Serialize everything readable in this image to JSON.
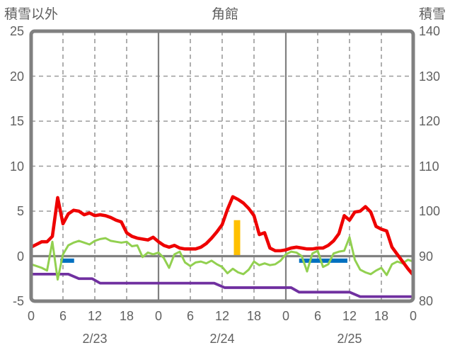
{
  "header": {
    "left_axis_label": "積雪以外",
    "title": "角館",
    "right_axis_label": "積雪"
  },
  "colors": {
    "red": "#EE0000",
    "green": "#92D050",
    "purple": "#7030A0",
    "blue": "#0070C0",
    "yellow": "#FFC000",
    "frame_gray": "#808080",
    "grid_gray": "#9B9B9B",
    "text_gray": "#5E5E5E"
  },
  "chart_data": {
    "type": "line",
    "title": "角館",
    "left_axis": {
      "label": "積雪以外",
      "ticks": [
        25,
        20,
        15,
        10,
        5,
        0,
        -5
      ],
      "range": [
        -5,
        25
      ]
    },
    "right_axis": {
      "label": "積雪",
      "ticks": [
        140,
        130,
        120,
        110,
        100,
        90,
        80
      ],
      "range": [
        80,
        140
      ]
    },
    "x_axis": {
      "range_hours": [
        0,
        72
      ],
      "tick_step_hours": 6,
      "tick_labels": [
        "0",
        "6",
        "12",
        "18",
        "0",
        "6",
        "12",
        "18",
        "0",
        "6",
        "12",
        "18",
        "0"
      ],
      "date_labels": [
        {
          "label": "2/23",
          "hour": 12
        },
        {
          "label": "2/24",
          "hour": 36
        },
        {
          "label": "2/25",
          "hour": 60
        }
      ]
    },
    "grid": {
      "dashed_h_ticks": [
        20,
        15,
        10,
        5
      ],
      "solid_zero_line": 0,
      "solid_v_hours": [
        24,
        48
      ],
      "dashed_v_hours": [
        6,
        12,
        18,
        30,
        36,
        42,
        54,
        60,
        66
      ]
    },
    "series": [
      {
        "name": "red-line",
        "axis": "left",
        "color": "#EE0000",
        "values": [
          1.0,
          1.3,
          1.6,
          1.6,
          2.2,
          6.5,
          3.6,
          4.7,
          5.1,
          5.0,
          4.6,
          4.8,
          4.5,
          4.6,
          4.5,
          4.3,
          4.0,
          3.8,
          2.6,
          2.2,
          2.0,
          1.9,
          1.8,
          2.1,
          1.6,
          1.2,
          1.0,
          1.2,
          0.9,
          0.8,
          0.8,
          0.8,
          1.0,
          1.4,
          2.0,
          2.7,
          3.5,
          5.2,
          6.6,
          6.3,
          5.9,
          5.3,
          4.5,
          2.4,
          2.6,
          0.9,
          0.6,
          0.6,
          0.7,
          0.9,
          1.0,
          0.9,
          0.8,
          0.8,
          0.9,
          0.9,
          1.2,
          1.7,
          2.5,
          4.5,
          4.0,
          4.9,
          5.0,
          5.5,
          4.9,
          3.3,
          3.0,
          2.8,
          1.0,
          0.2,
          -0.6,
          -1.4,
          -2.1
        ]
      },
      {
        "name": "green-line",
        "axis": "left",
        "color": "#92D050",
        "values": [
          -0.9,
          -1.1,
          -1.3,
          -1.6,
          1.6,
          -2.6,
          0.2,
          1.2,
          1.5,
          1.7,
          1.5,
          1.3,
          1.7,
          1.9,
          2.0,
          1.7,
          1.6,
          1.5,
          1.6,
          1.1,
          1.2,
          -0.1,
          0.4,
          0.2,
          0.4,
          -0.2,
          -1.3,
          0.2,
          0.5,
          -0.7,
          -1.1,
          -0.7,
          -0.6,
          -0.8,
          -0.5,
          -0.9,
          -1.2,
          -1.9,
          -1.4,
          -1.8,
          -2.0,
          -1.5,
          -0.6,
          -1.0,
          -0.8,
          -1.0,
          -0.9,
          -0.5,
          0.2,
          0.5,
          0.4,
          0.0,
          -1.7,
          0.3,
          0.6,
          -1.2,
          -0.9,
          0.3,
          0.5,
          0.6,
          2.1,
          -0.4,
          -1.5,
          -1.8,
          -2.0,
          -1.6,
          -1.3,
          -2.1,
          -0.9,
          -0.6,
          -0.8,
          -0.4,
          -0.6
        ]
      }
    ],
    "snow_depth_line": {
      "name": "snow-depth-line",
      "axis": "right",
      "color": "#7030A0",
      "points": [
        {
          "hour": 0,
          "cm": 86
        },
        {
          "hour": 7,
          "cm": 86
        },
        {
          "hour": 9,
          "cm": 85
        },
        {
          "hour": 11.5,
          "cm": 85
        },
        {
          "hour": 13,
          "cm": 84
        },
        {
          "hour": 34.5,
          "cm": 84
        },
        {
          "hour": 36.5,
          "cm": 83
        },
        {
          "hour": 49,
          "cm": 83
        },
        {
          "hour": 50.5,
          "cm": 82
        },
        {
          "hour": 60,
          "cm": 82
        },
        {
          "hour": 62,
          "cm": 81
        },
        {
          "hour": 72,
          "cm": 81
        }
      ]
    },
    "bars": [
      {
        "name": "yellow-bar",
        "color": "#FFC000",
        "hour_start": 38.2,
        "hour_end": 39.4,
        "value_from": 0,
        "value_to": 4
      }
    ],
    "segments": [
      {
        "name": "blue-segment",
        "color": "#0070C0",
        "hour_start": 5.5,
        "hour_end": 8.1,
        "value": -0.5
      },
      {
        "name": "blue-segment",
        "color": "#0070C0",
        "hour_start": 50.5,
        "hour_end": 59.6,
        "value": -0.5
      }
    ]
  }
}
